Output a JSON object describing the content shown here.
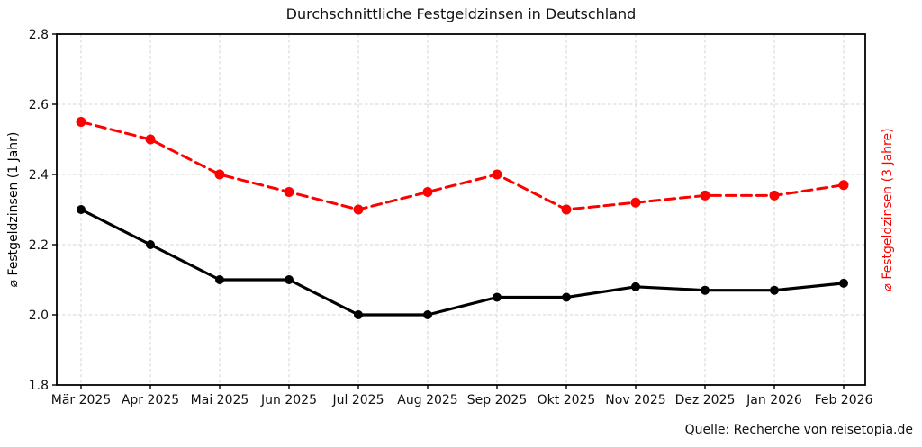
{
  "chart_data": {
    "type": "line",
    "title": "Durchschnittliche Festgeldzinsen in Deutschland",
    "source": "Quelle: Recherche von reisetopia.de",
    "categories": [
      "Mär 2025",
      "Apr 2025",
      "Mai 2025",
      "Jun 2025",
      "Jul 2025",
      "Aug 2025",
      "Sep 2025",
      "Okt 2025",
      "Nov 2025",
      "Dez 2025",
      "Jan 2026",
      "Feb 2026"
    ],
    "series": [
      {
        "name": "⌀ Festgeldzinsen (1 Jahr)",
        "color": "#000000",
        "linestyle": "solid",
        "marker": "circle",
        "values": [
          2.3,
          2.2,
          2.1,
          2.1,
          2.0,
          2.0,
          2.05,
          2.05,
          2.08,
          2.07,
          2.07,
          2.09
        ]
      },
      {
        "name": "⌀ Festgeldzinsen (3 Jahre)",
        "color": "#ff0000",
        "linestyle": "dashed",
        "marker": "circle",
        "values": [
          2.55,
          2.5,
          2.4,
          2.35,
          2.3,
          2.35,
          2.4,
          2.3,
          2.32,
          2.34,
          2.34,
          2.37
        ]
      }
    ],
    "ylabel_left": "⌀ Festgeldzinsen (1 Jahr)",
    "ylabel_right": "⌀ Festgeldzinsen (3 Jahre)",
    "ylim": [
      1.8,
      2.8
    ],
    "yticks": [
      1.8,
      2.0,
      2.2,
      2.4,
      2.6,
      2.8
    ],
    "ytick_decimals": 1,
    "grid": true,
    "grid_color": "#d4d4d4",
    "legend": "none"
  }
}
